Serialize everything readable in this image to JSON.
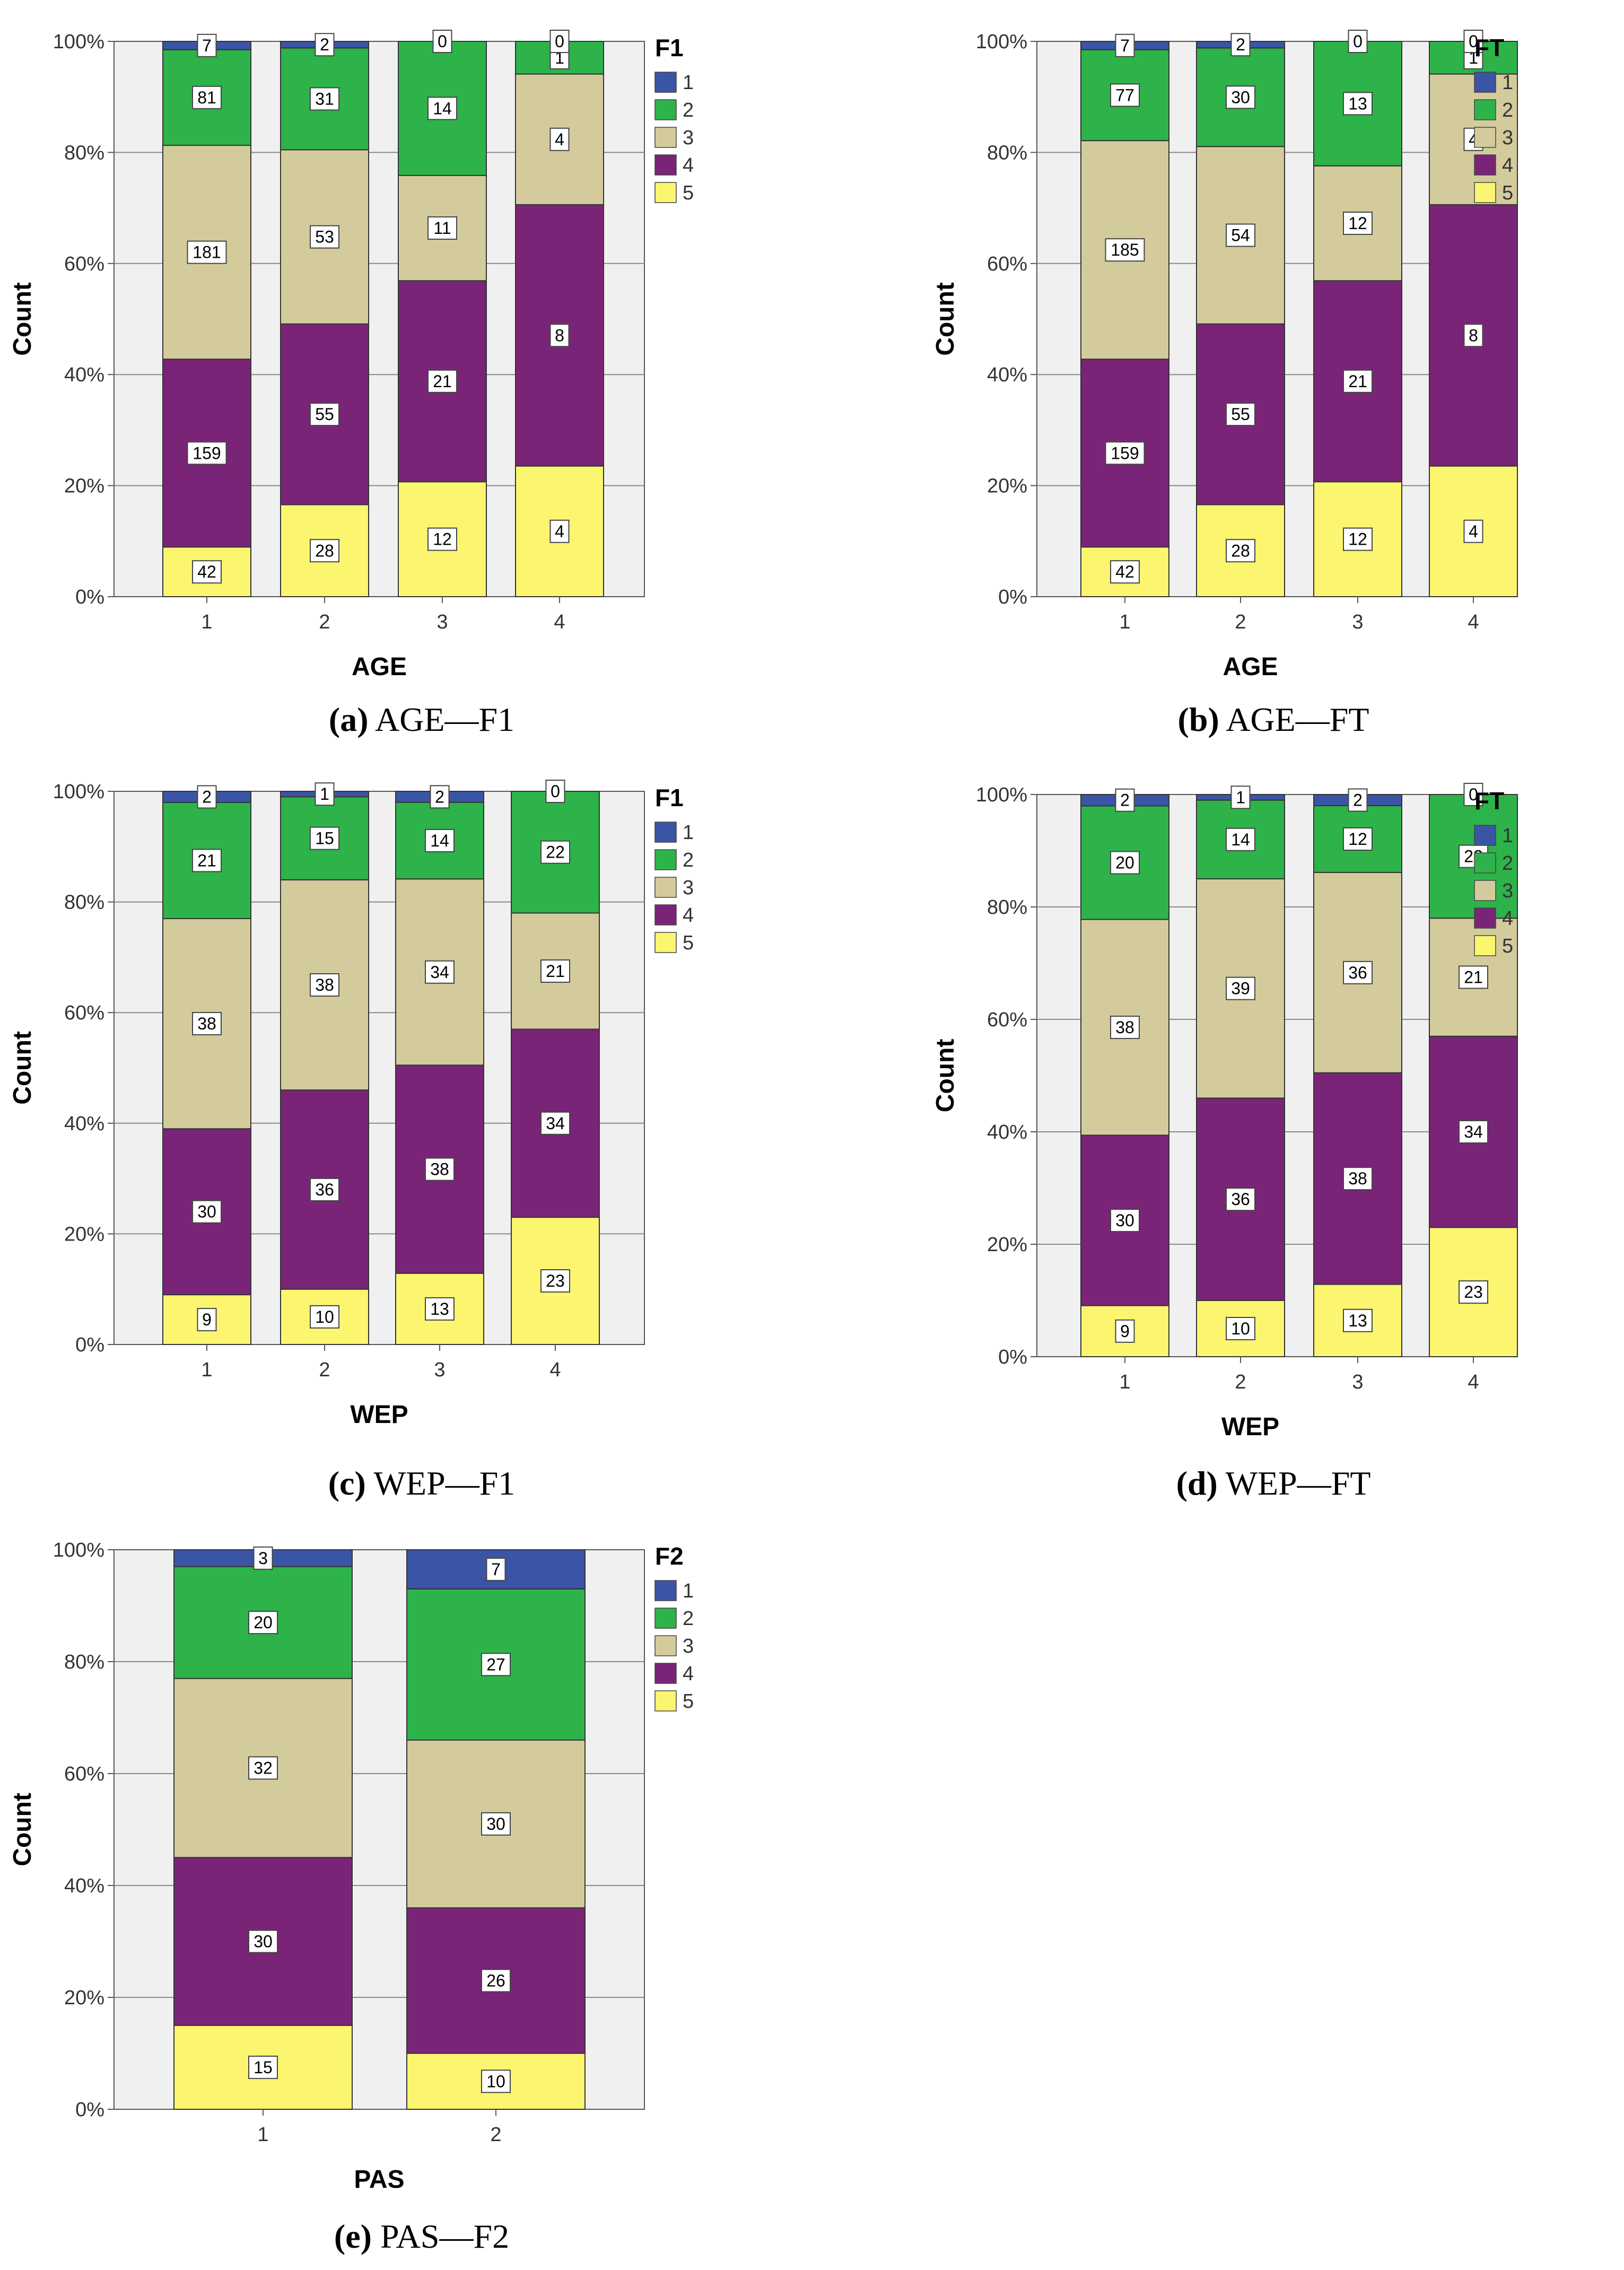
{
  "colors": {
    "1": "#3b55a6",
    "2": "#2db34a",
    "3": "#d4cb9c",
    "4": "#7a2478",
    "5": "#fbf56f",
    "plot_bg": "#f0f0f0",
    "grid": "#8a8a8a"
  },
  "charts": [
    {
      "caption_letter": "(a)",
      "caption_text": "AGE—F1",
      "ylabel": "Count",
      "xlabel": "AGE",
      "legend_title": "F1",
      "legend_items": [
        "1",
        "2",
        "3",
        "4",
        "5"
      ],
      "y_ticks": [
        "0%",
        "20%",
        "40%",
        "60%",
        "80%",
        "100%"
      ],
      "categories": [
        "1",
        "2",
        "3",
        "4"
      ]
    },
    {
      "caption_letter": "(b)",
      "caption_text": "AGE—FT",
      "ylabel": "Count",
      "xlabel": "AGE",
      "legend_title": "FT",
      "legend_items": [
        "1",
        "2",
        "3",
        "4",
        "5"
      ],
      "y_ticks": [
        "0%",
        "20%",
        "40%",
        "60%",
        "80%",
        "100%"
      ],
      "categories": [
        "1",
        "2",
        "3",
        "4"
      ]
    },
    {
      "caption_letter": "(c)",
      "caption_text": "WEP—F1",
      "ylabel": "Count",
      "xlabel": "WEP",
      "legend_title": "F1",
      "legend_items": [
        "1",
        "2",
        "3",
        "4",
        "5"
      ],
      "y_ticks": [
        "0%",
        "20%",
        "40%",
        "60%",
        "80%",
        "100%"
      ],
      "categories": [
        "1",
        "2",
        "3",
        "4"
      ]
    },
    {
      "caption_letter": "(d)",
      "caption_text": "WEP—FT",
      "ylabel": "Count",
      "xlabel": "WEP",
      "legend_title": "FT",
      "legend_items": [
        "1",
        "2",
        "3",
        "4",
        "5"
      ],
      "y_ticks": [
        "0%",
        "20%",
        "40%",
        "60%",
        "80%",
        "100%"
      ],
      "categories": [
        "1",
        "2",
        "3",
        "4"
      ]
    },
    {
      "caption_letter": "(e)",
      "caption_text": "PAS—F2",
      "ylabel": "Count",
      "xlabel": "PAS",
      "legend_title": "F2",
      "legend_items": [
        "1",
        "2",
        "3",
        "4",
        "5"
      ],
      "y_ticks": [
        "0%",
        "20%",
        "40%",
        "60%",
        "80%",
        "100%"
      ],
      "categories": [
        "1",
        "2"
      ]
    }
  ],
  "chart_data": [
    {
      "type": "bar",
      "stacked": "percent",
      "xlabel": "AGE",
      "ylabel": "Count",
      "legend_title": "F1",
      "categories": [
        "1",
        "2",
        "3",
        "4"
      ],
      "ylim": [
        0,
        100
      ],
      "series": [
        {
          "name": "1",
          "values": [
            7,
            2,
            0,
            0
          ]
        },
        {
          "name": "2",
          "values": [
            81,
            31,
            14,
            1
          ]
        },
        {
          "name": "3",
          "values": [
            181,
            53,
            11,
            4
          ]
        },
        {
          "name": "4",
          "values": [
            159,
            55,
            21,
            8
          ]
        },
        {
          "name": "5",
          "values": [
            42,
            28,
            12,
            4
          ]
        }
      ]
    },
    {
      "type": "bar",
      "stacked": "percent",
      "xlabel": "AGE",
      "ylabel": "Count",
      "legend_title": "FT",
      "categories": [
        "1",
        "2",
        "3",
        "4"
      ],
      "ylim": [
        0,
        100
      ],
      "series": [
        {
          "name": "1",
          "values": [
            7,
            2,
            0,
            0
          ]
        },
        {
          "name": "2",
          "values": [
            77,
            30,
            13,
            1
          ]
        },
        {
          "name": "3",
          "values": [
            185,
            54,
            12,
            4
          ]
        },
        {
          "name": "4",
          "values": [
            159,
            55,
            21,
            8
          ]
        },
        {
          "name": "5",
          "values": [
            42,
            28,
            12,
            4
          ]
        }
      ]
    },
    {
      "type": "bar",
      "stacked": "percent",
      "xlabel": "WEP",
      "ylabel": "Count",
      "legend_title": "F1",
      "categories": [
        "1",
        "2",
        "3",
        "4"
      ],
      "ylim": [
        0,
        100
      ],
      "series": [
        {
          "name": "1",
          "values": [
            2,
            1,
            2,
            0
          ]
        },
        {
          "name": "2",
          "values": [
            21,
            15,
            14,
            22
          ]
        },
        {
          "name": "3",
          "values": [
            38,
            38,
            34,
            21
          ]
        },
        {
          "name": "4",
          "values": [
            30,
            36,
            38,
            34
          ]
        },
        {
          "name": "5",
          "values": [
            9,
            10,
            13,
            23
          ]
        }
      ]
    },
    {
      "type": "bar",
      "stacked": "percent",
      "xlabel": "WEP",
      "ylabel": "Count",
      "legend_title": "FT",
      "categories": [
        "1",
        "2",
        "3",
        "4"
      ],
      "ylim": [
        0,
        100
      ],
      "series": [
        {
          "name": "1",
          "values": [
            2,
            1,
            2,
            0
          ]
        },
        {
          "name": "2",
          "values": [
            20,
            14,
            12,
            22
          ]
        },
        {
          "name": "3",
          "values": [
            38,
            39,
            36,
            21
          ]
        },
        {
          "name": "4",
          "values": [
            30,
            36,
            38,
            34
          ]
        },
        {
          "name": "5",
          "values": [
            9,
            10,
            13,
            23
          ]
        }
      ]
    },
    {
      "type": "bar",
      "stacked": "percent",
      "xlabel": "PAS",
      "ylabel": "Count",
      "legend_title": "F2",
      "categories": [
        "1",
        "2"
      ],
      "ylim": [
        0,
        100
      ],
      "series": [
        {
          "name": "1",
          "values": [
            3,
            7
          ]
        },
        {
          "name": "2",
          "values": [
            20,
            27
          ]
        },
        {
          "name": "3",
          "values": [
            32,
            30
          ]
        },
        {
          "name": "4",
          "values": [
            30,
            26
          ]
        },
        {
          "name": "5",
          "values": [
            15,
            10
          ]
        }
      ]
    }
  ]
}
